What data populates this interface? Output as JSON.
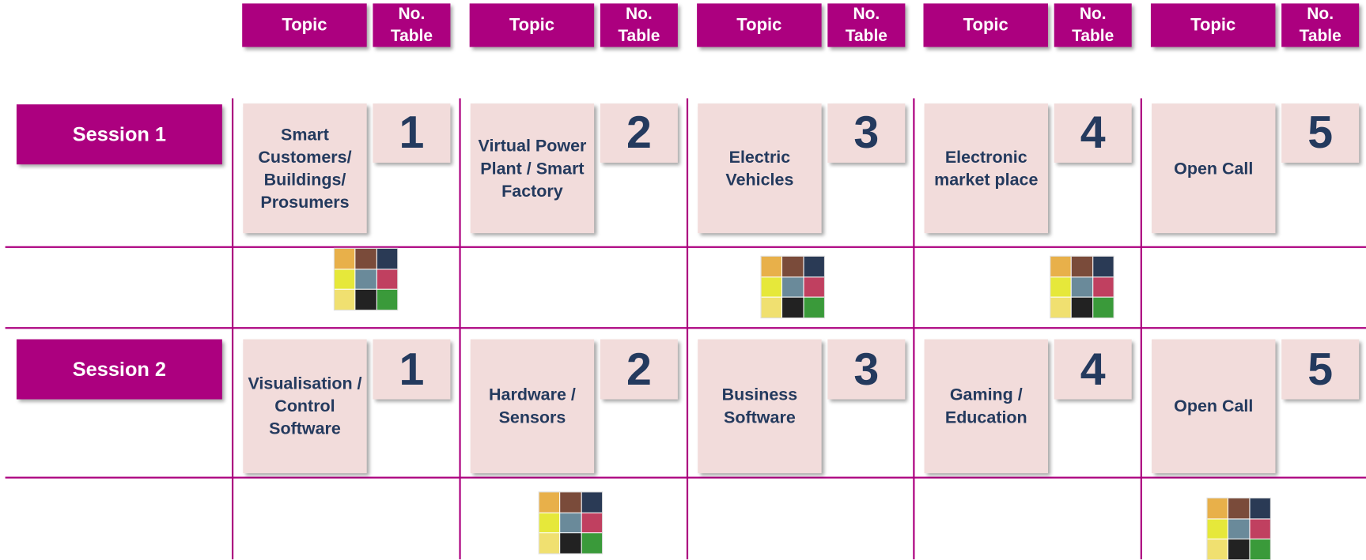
{
  "header": [
    {
      "topic": "Topic",
      "table": "No. Table"
    },
    {
      "topic": "Topic",
      "table": "No. Table"
    },
    {
      "topic": "Topic",
      "table": "No. Table"
    },
    {
      "topic": "Topic",
      "table": "No. Table"
    },
    {
      "topic": "Topic",
      "table": "No. Table"
    }
  ],
  "sessions": [
    {
      "label": "Session 1",
      "topics": [
        {
          "name": "Smart Customers/ Buildings/ Prosumers",
          "table": 1
        },
        {
          "name": "Virtual Power Plant / Smart Factory",
          "table": 2
        },
        {
          "name": "Electric Vehicles",
          "table": 3
        },
        {
          "name": "Electronic market place",
          "table": 4
        },
        {
          "name": "Open Call",
          "table": 5
        }
      ]
    },
    {
      "label": "Session 2",
      "topics": [
        {
          "name": "Visualisation / Control Software",
          "table": 1
        },
        {
          "name": "Hardware / Sensors",
          "table": 2
        },
        {
          "name": "Business Software",
          "table": 3
        },
        {
          "name": "Gaming / Education",
          "table": 4
        },
        {
          "name": "Open Call",
          "table": 5
        }
      ]
    }
  ]
}
